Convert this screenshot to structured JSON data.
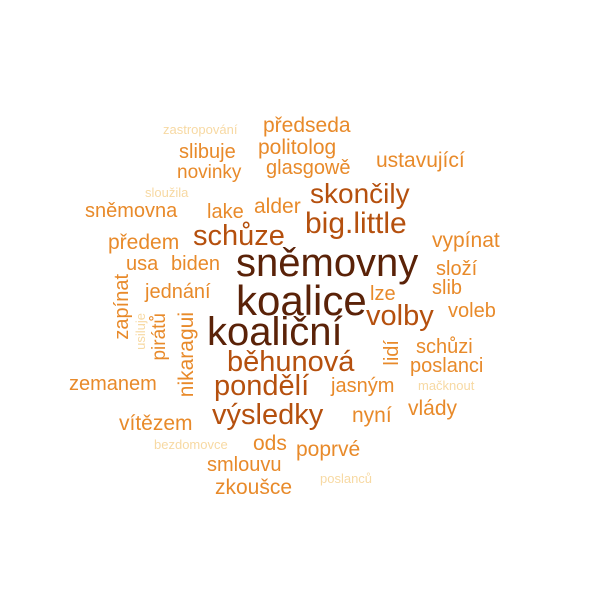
{
  "words": {
    "zastropovani": "zastropování",
    "predseda": "předseda",
    "slibuje": "slibuje",
    "politolog": "politolog",
    "ustavujici": "ustavující",
    "novinky": "novinky",
    "glasgowe": "glasgowě",
    "slouzila": "sloužila",
    "skoncily": "skončily",
    "snemovna": "sněmovna",
    "lake": "lake",
    "alder": "alder",
    "biglittle": "big.little",
    "schuze": "schůze",
    "predem": "předem",
    "vypinat": "vypínat",
    "snemovny": "sněmovny",
    "usa": "usa",
    "biden": "biden",
    "slozi": "složí",
    "zapinat": "zapínat",
    "jednani": "jednání",
    "koalice": "koalice",
    "lze": "lze",
    "slib": "slib",
    "voleb": "voleb",
    "usiluje": "usiluje",
    "piratu": "pirátů",
    "nikaragui": "nikaragui",
    "koalicni": "koaliční",
    "volby": "volby",
    "lidi": "lidí",
    "schuzi": "schůzi",
    "behunova": "běhunová",
    "poslanci": "poslanci",
    "zemanem": "zemanem",
    "pondeli": "pondělí",
    "jasnym": "jasným",
    "macknout": "mačknout",
    "vysledky": "výsledky",
    "nyni": "nyní",
    "vlady": "vlády",
    "vitezem": "vítězem",
    "bezdomovce": "bezdomovce",
    "ods": "ods",
    "poprve": "poprvé",
    "smlouvu": "smlouvu",
    "poslancu": "poslanců",
    "zkousce": "zkoušce"
  },
  "colors": {
    "palest": "#f7d9a3",
    "light": "#f0a95a",
    "medium": "#e88a2a",
    "dark_orange": "#d1661a",
    "rust": "#b5500e",
    "darkest": "#5a2208"
  }
}
